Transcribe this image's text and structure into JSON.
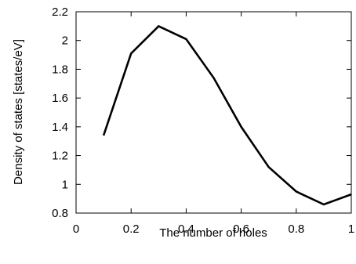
{
  "chart_data": {
    "type": "line",
    "title": "",
    "xlabel": "The number of holes",
    "ylabel": "Density of states [states/eV]",
    "xlim": [
      0,
      1
    ],
    "ylim": [
      0.8,
      2.2
    ],
    "x_ticks": [
      "0",
      "0.2",
      "0.4",
      "0.6",
      "0.8",
      "1"
    ],
    "y_ticks": [
      "0.8",
      "1",
      "1.2",
      "1.4",
      "1.6",
      "1.8",
      "2",
      "2.2"
    ],
    "grid": false,
    "series": [
      {
        "x": [
          0.1,
          0.2,
          0.3,
          0.4,
          0.5,
          0.6,
          0.7,
          0.8,
          0.9,
          1.0
        ],
        "values": [
          1.34,
          1.91,
          2.1,
          2.01,
          1.74,
          1.4,
          1.12,
          0.95,
          0.86,
          0.93
        ],
        "color": "#000000"
      }
    ]
  }
}
